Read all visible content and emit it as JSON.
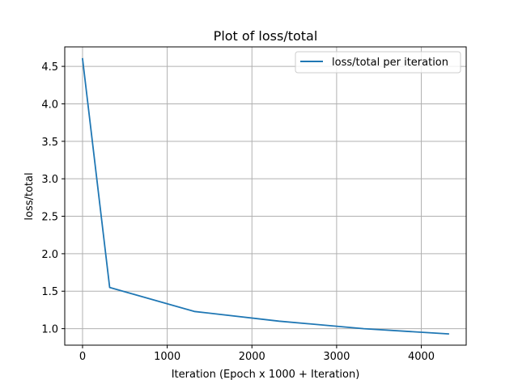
{
  "chart_data": {
    "type": "line",
    "title": "Plot of loss/total",
    "xlabel": "Iteration (Epoch x 1000 + Iteration)",
    "ylabel": "loss/total",
    "xlim": [
      -210,
      4530
    ],
    "ylim": [
      0.78,
      4.76
    ],
    "xticks": [
      0,
      1000,
      2000,
      3000,
      4000
    ],
    "yticks": [
      1.0,
      1.5,
      2.0,
      2.5,
      3.0,
      3.5,
      4.0,
      4.5
    ],
    "xtick_labels": [
      "0",
      "1000",
      "2000",
      "3000",
      "4000"
    ],
    "ytick_labels": [
      "1.0",
      "1.5",
      "2.0",
      "2.5",
      "3.0",
      "3.5",
      "4.0",
      "4.5"
    ],
    "grid": true,
    "legend_position": "upper-right",
    "series": [
      {
        "name": "loss/total per iteration",
        "color": "#1f77b4",
        "x": [
          0,
          320,
          1320,
          2320,
          3320,
          4320
        ],
        "y": [
          4.6,
          1.55,
          1.23,
          1.1,
          1.0,
          0.93
        ]
      }
    ]
  }
}
